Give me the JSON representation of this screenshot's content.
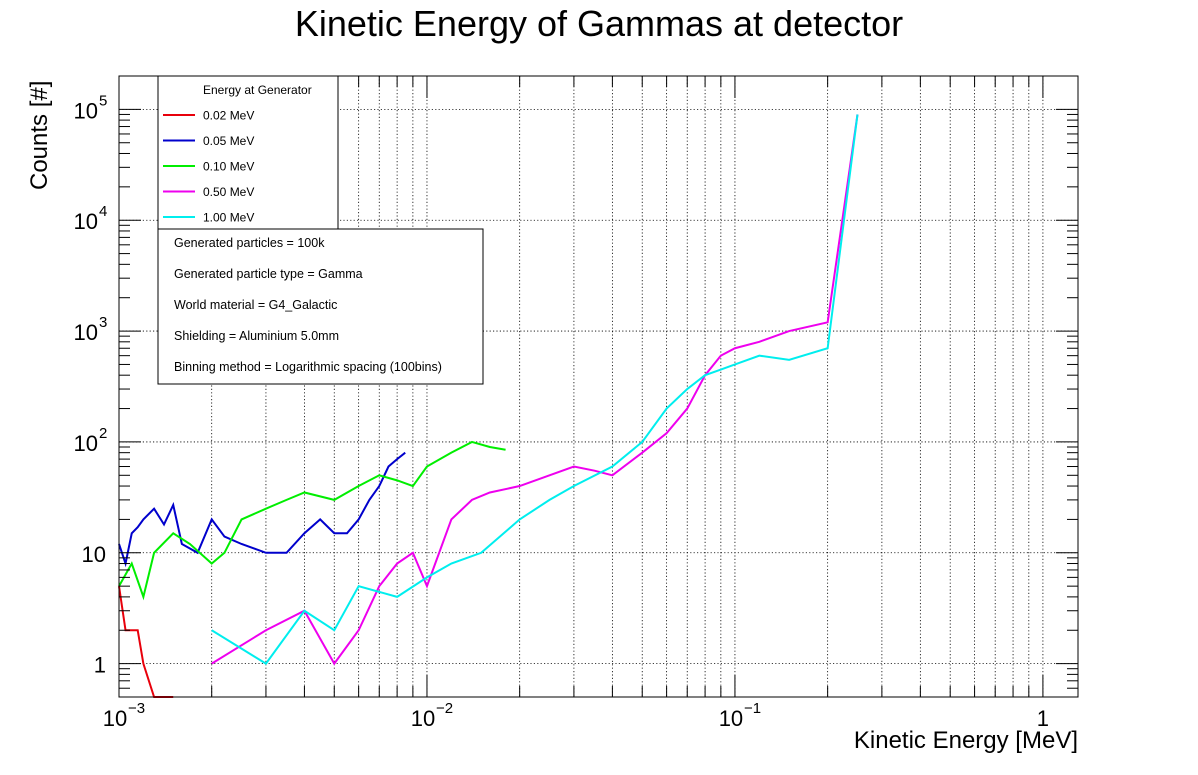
{
  "chart_data": {
    "type": "line",
    "title": "Kinetic Energy of Gammas at detector",
    "xlabel": "Kinetic Energy [MeV]",
    "ylabel": "Counts [#]",
    "xscale": "log",
    "yscale": "log",
    "xlim": [
      0.001,
      1.3
    ],
    "ylim": [
      0.5,
      200000
    ],
    "grid": true,
    "x_ticks": [
      {
        "base": "10",
        "exp": "−3"
      },
      {
        "base": "10",
        "exp": "−2"
      },
      {
        "base": "10",
        "exp": "−1"
      },
      {
        "base": "1",
        "exp": ""
      }
    ],
    "y_ticks": [
      {
        "base": "1",
        "exp": ""
      },
      {
        "base": "10",
        "exp": ""
      },
      {
        "base": "10",
        "exp": "2"
      },
      {
        "base": "10",
        "exp": "3"
      },
      {
        "base": "10",
        "exp": "4"
      },
      {
        "base": "10",
        "exp": "5"
      }
    ],
    "legend": {
      "title": "Energy at Generator",
      "placement": "top-left"
    },
    "series": [
      {
        "name": "0.02 MeV",
        "color": "#e8000b",
        "values": [
          5,
          2,
          2,
          2,
          1,
          0,
          0,
          0,
          0,
          0,
          0,
          0,
          0,
          0,
          0,
          0,
          0,
          0,
          0,
          0,
          0,
          0,
          0,
          0,
          0,
          0,
          0,
          0,
          0,
          0,
          0,
          0,
          0,
          0,
          0,
          0,
          0,
          0,
          0,
          0,
          0,
          0,
          0,
          0,
          0,
          0,
          0,
          0,
          0,
          0,
          0,
          0,
          0,
          0,
          0,
          0,
          0,
          0,
          0,
          0,
          0,
          0,
          0,
          0,
          0,
          0,
          0,
          0,
          0,
          0,
          0,
          0,
          0,
          0,
          0,
          0,
          0,
          0,
          0,
          0,
          0,
          0,
          0,
          0,
          0,
          0,
          0,
          0,
          0,
          0,
          0,
          0,
          0,
          0,
          0,
          0,
          0,
          0,
          0,
          0,
          0,
          0,
          0,
          0,
          0,
          0,
          0,
          0,
          0,
          0,
          0,
          0,
          0,
          0,
          0,
          0,
          0,
          0,
          0,
          0,
          0,
          0,
          0,
          0,
          0,
          0,
          0,
          0,
          0,
          0,
          0,
          0,
          0,
          0,
          0,
          0,
          0,
          0,
          0,
          0,
          0,
          0,
          0,
          0,
          0,
          0,
          0,
          0,
          0,
          0,
          0
        ]
      },
      {
        "name": "0.05 MeV",
        "color": "#0000cc",
        "values": [
          12,
          8,
          15,
          17,
          20,
          25,
          18,
          27,
          12,
          10,
          20,
          14,
          12,
          10,
          10,
          15,
          20,
          15,
          15,
          20,
          30,
          40,
          60,
          70,
          80
        ]
      },
      {
        "name": "0.10 MeV",
        "color": "#00ee00",
        "values": [
          5,
          8,
          4,
          10,
          15,
          12,
          8,
          10,
          20,
          25,
          30,
          35,
          30,
          40,
          50,
          45,
          40,
          60,
          80,
          100,
          90,
          85
        ]
      },
      {
        "name": "0.50 MeV",
        "color": "#ee00ee",
        "values": [
          1,
          2,
          3,
          1,
          2,
          5,
          8,
          10,
          5,
          20,
          30,
          35,
          40,
          50,
          60,
          55,
          50,
          80,
          120,
          200,
          400,
          600,
          700,
          800,
          1000,
          1200,
          90000
        ]
      },
      {
        "name": "1.00 MeV",
        "color": "#00eeee",
        "values": [
          2,
          1,
          3,
          2,
          5,
          4,
          6,
          8,
          10,
          20,
          30,
          40,
          60,
          100,
          200,
          300,
          400,
          450,
          500,
          600,
          550,
          700,
          90000
        ]
      }
    ],
    "info_box": [
      "Generated particles = 100k",
      "Generated particle type = Gamma",
      "World material = G4_Galactic",
      "Shielding = Aluminium 5.0mm",
      "Binning method = Logarithmic spacing (100bins)"
    ]
  }
}
